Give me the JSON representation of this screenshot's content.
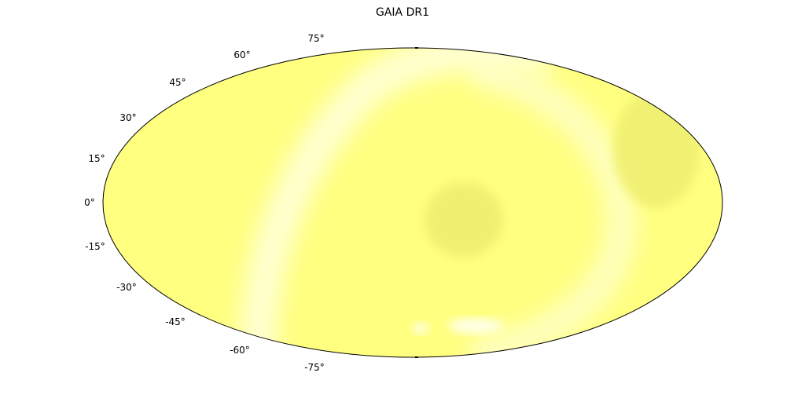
{
  "title": "GAIA DR1",
  "projection": "mollweide",
  "colors": {
    "base": "#ffff80",
    "pale": "#ffffd0",
    "shade": "#eeee70",
    "outline": "#000000"
  },
  "lat_labels": [
    "75°",
    "60°",
    "45°",
    "30°",
    "15°",
    "0°",
    "-15°",
    "-30°",
    "-45°",
    "-60°",
    "-75°"
  ]
}
